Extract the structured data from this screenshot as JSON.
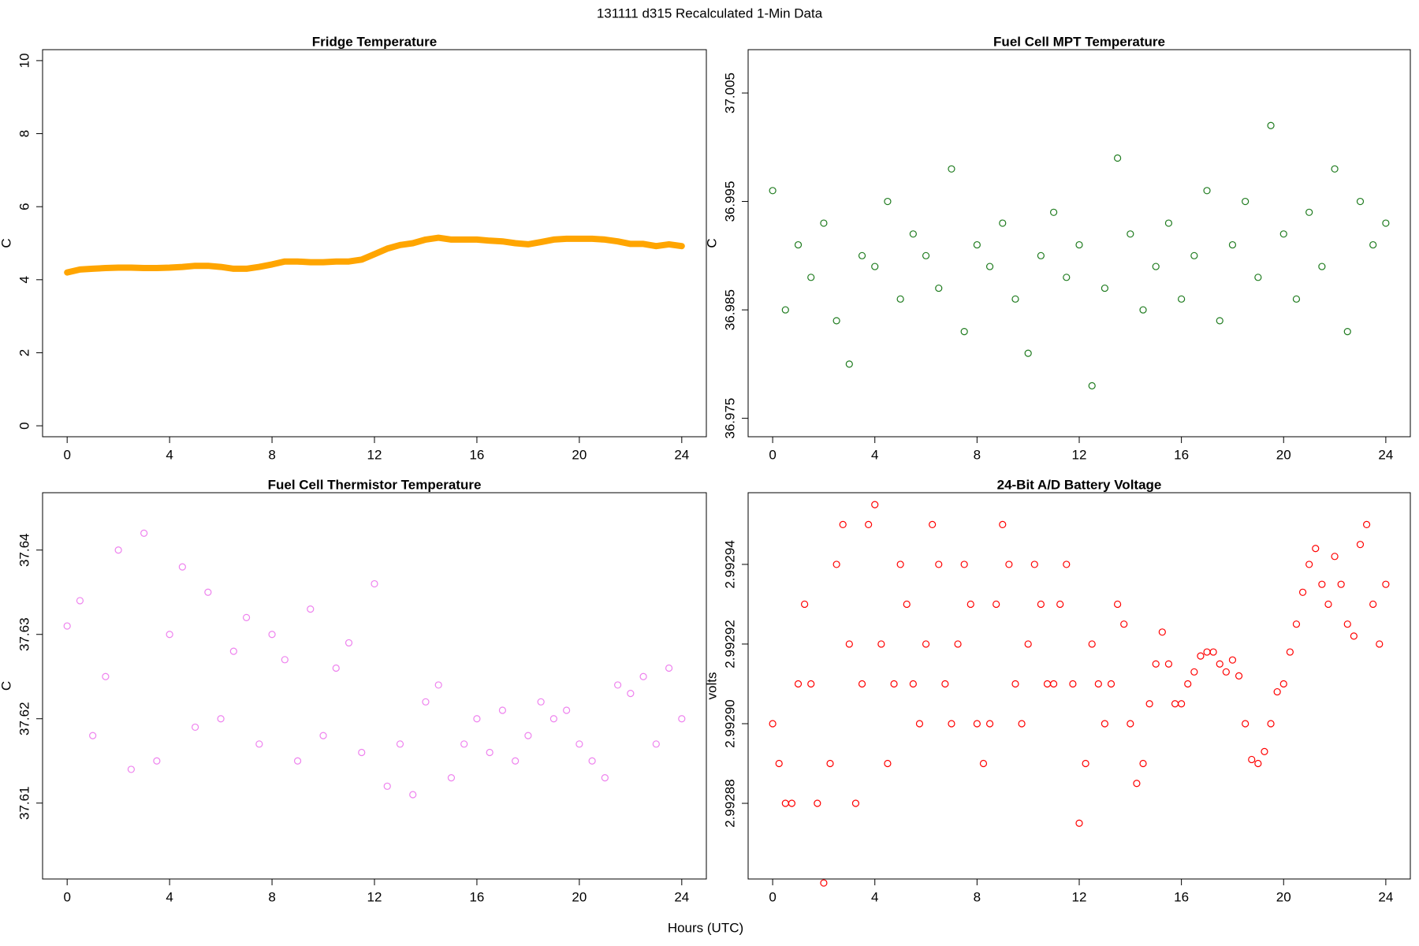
{
  "title": "131111   d315   Recalculated 1-Min Data",
  "xlabel": "Hours (UTC)",
  "chart_data": [
    {
      "type": "line",
      "title": "Fridge Temperature",
      "ylabel": "C",
      "color": "#ffa500",
      "x": [
        0,
        0.5,
        1,
        1.5,
        2,
        2.5,
        3,
        3.5,
        4,
        4.5,
        5,
        5.5,
        6,
        6.5,
        7,
        7.5,
        8,
        8.5,
        9,
        9.5,
        10,
        10.5,
        11,
        11.5,
        12,
        12.5,
        13,
        13.5,
        14,
        14.5,
        15,
        15.5,
        16,
        16.5,
        17,
        17.5,
        18,
        18.5,
        19,
        19.5,
        20,
        20.5,
        21,
        21.5,
        22,
        22.5,
        23,
        23.5,
        24
      ],
      "values": [
        4.2,
        4.28,
        4.3,
        4.32,
        4.33,
        4.33,
        4.32,
        4.32,
        4.33,
        4.35,
        4.38,
        4.38,
        4.35,
        4.3,
        4.3,
        4.35,
        4.42,
        4.5,
        4.5,
        4.48,
        4.48,
        4.5,
        4.5,
        4.55,
        4.7,
        4.85,
        4.95,
        5.0,
        5.1,
        5.15,
        5.1,
        5.1,
        5.1,
        5.07,
        5.05,
        5.0,
        4.97,
        5.03,
        5.1,
        5.12,
        5.12,
        5.12,
        5.1,
        5.05,
        4.98,
        4.98,
        4.92,
        4.97,
        4.92
      ],
      "xlim": [
        -0.96,
        24.96
      ],
      "xticks": [
        0,
        4,
        8,
        12,
        16,
        20,
        24
      ],
      "ylim": [
        -0.3,
        10.3
      ],
      "yticks": [
        0,
        2,
        4,
        6,
        8,
        10
      ]
    },
    {
      "type": "scatter",
      "title": "Fuel Cell MPT Temperature",
      "ylabel": "C",
      "color": "#1e7b1e",
      "x": [
        0,
        0.5,
        1,
        1.5,
        2,
        2.5,
        3,
        3.5,
        4,
        4.5,
        5,
        5.5,
        6,
        6.5,
        7,
        7.5,
        8,
        8.5,
        9,
        9.5,
        10,
        10.5,
        11,
        11.5,
        12,
        12.5,
        13,
        13.5,
        14,
        14.5,
        15,
        15.5,
        16,
        16.5,
        17,
        17.5,
        18,
        18.5,
        19,
        19.5,
        20,
        20.5,
        21,
        21.5,
        22,
        22.5,
        23,
        23.5,
        24
      ],
      "values": [
        36.996,
        36.985,
        36.991,
        36.988,
        36.993,
        36.984,
        36.98,
        36.99,
        36.989,
        36.995,
        36.986,
        36.992,
        36.99,
        36.987,
        36.998,
        36.983,
        36.991,
        36.989,
        36.993,
        36.986,
        36.981,
        36.99,
        36.994,
        36.988,
        36.991,
        36.978,
        36.987,
        36.999,
        36.992,
        36.985,
        36.989,
        36.993,
        36.986,
        36.99,
        36.996,
        36.984,
        36.991,
        36.995,
        36.988,
        37.002,
        36.992,
        36.986,
        36.994,
        36.989,
        36.998,
        36.983,
        36.995,
        36.991,
        36.993
      ],
      "xlim": [
        -0.96,
        24.96
      ],
      "xticks": [
        0,
        4,
        8,
        12,
        16,
        20,
        24
      ],
      "ylim": [
        36.9733,
        37.009
      ],
      "yticks": [
        36.975,
        36.985,
        36.995,
        37.005
      ]
    },
    {
      "type": "scatter",
      "title": "Fuel Cell Thermistor Temperature",
      "ylabel": "C",
      "color": "#ee82ee",
      "x": [
        0,
        0.5,
        1,
        1.5,
        2,
        2.5,
        3,
        3.5,
        4,
        4.5,
        5,
        5.5,
        6,
        6.5,
        7,
        7.5,
        8,
        8.5,
        9,
        9.5,
        10,
        10.5,
        11,
        11.5,
        12,
        12.5,
        13,
        13.5,
        14,
        14.5,
        15,
        15.5,
        16,
        16.5,
        17,
        17.5,
        18,
        18.5,
        19,
        19.5,
        20,
        20.5,
        21,
        21.5,
        22,
        22.5,
        23,
        23.5,
        24
      ],
      "values": [
        37.631,
        37.634,
        37.618,
        37.625,
        37.64,
        37.614,
        37.642,
        37.615,
        37.63,
        37.638,
        37.619,
        37.635,
        37.62,
        37.628,
        37.632,
        37.617,
        37.63,
        37.627,
        37.615,
        37.633,
        37.618,
        37.626,
        37.629,
        37.616,
        37.636,
        37.612,
        37.617,
        37.611,
        37.622,
        37.624,
        37.613,
        37.617,
        37.62,
        37.616,
        37.621,
        37.615,
        37.618,
        37.622,
        37.62,
        37.621,
        37.617,
        37.615,
        37.613,
        37.624,
        37.623,
        37.625,
        37.617,
        37.626,
        37.62
      ],
      "xlim": [
        -0.96,
        24.96
      ],
      "xticks": [
        0,
        4,
        8,
        12,
        16,
        20,
        24
      ],
      "ylim": [
        37.601,
        37.6468
      ],
      "yticks": [
        37.61,
        37.62,
        37.63,
        37.64
      ]
    },
    {
      "type": "scatter",
      "title": "24-Bit A/D Battery Voltage",
      "ylabel": "volts",
      "color": "#ff0000",
      "x": [
        0,
        0.25,
        0.5,
        0.75,
        1,
        1.25,
        1.5,
        1.75,
        2,
        2.25,
        2.5,
        2.75,
        3,
        3.25,
        3.5,
        3.75,
        4,
        4.25,
        4.5,
        4.75,
        5,
        5.25,
        5.5,
        5.75,
        6,
        6.25,
        6.5,
        6.75,
        7,
        7.25,
        7.5,
        7.75,
        8,
        8.25,
        8.5,
        8.75,
        9,
        9.25,
        9.5,
        9.75,
        10,
        10.25,
        10.5,
        10.75,
        11,
        11.25,
        11.5,
        11.75,
        12,
        12.25,
        12.5,
        12.75,
        13,
        13.25,
        13.5,
        13.75,
        14,
        14.25,
        14.5,
        14.75,
        15,
        15.25,
        15.5,
        15.75,
        16,
        16.25,
        16.5,
        16.75,
        17,
        17.25,
        17.5,
        17.75,
        18,
        18.25,
        18.5,
        18.75,
        19,
        19.25,
        19.5,
        19.75,
        20,
        20.25,
        20.5,
        20.75,
        21,
        21.25,
        21.5,
        21.75,
        22,
        22.25,
        22.5,
        22.75,
        23,
        23.25,
        23.5,
        23.75,
        24
      ],
      "values": [
        2.9929,
        2.99289,
        2.99288,
        2.99288,
        2.99291,
        2.99293,
        2.99291,
        2.99288,
        2.99286,
        2.99289,
        2.99294,
        2.99295,
        2.99292,
        2.99288,
        2.99291,
        2.99295,
        2.992955,
        2.99292,
        2.99289,
        2.99291,
        2.99294,
        2.99293,
        2.99291,
        2.9929,
        2.99292,
        2.99295,
        2.99294,
        2.99291,
        2.9929,
        2.99292,
        2.99294,
        2.99293,
        2.9929,
        2.99289,
        2.9929,
        2.99293,
        2.99295,
        2.99294,
        2.99291,
        2.9929,
        2.99292,
        2.99294,
        2.99293,
        2.99291,
        2.99291,
        2.99293,
        2.99294,
        2.99291,
        2.992875,
        2.99289,
        2.99292,
        2.99291,
        2.9929,
        2.99291,
        2.99293,
        2.992925,
        2.9929,
        2.992885,
        2.99289,
        2.992905,
        2.992915,
        2.992923,
        2.992915,
        2.992905,
        2.992905,
        2.99291,
        2.992913,
        2.992917,
        2.992918,
        2.992918,
        2.992915,
        2.992913,
        2.992916,
        2.992912,
        2.9929,
        2.992891,
        2.99289,
        2.992893,
        2.9929,
        2.992908,
        2.99291,
        2.992918,
        2.992925,
        2.992933,
        2.99294,
        2.992944,
        2.992935,
        2.99293,
        2.992942,
        2.992935,
        2.992925,
        2.992922,
        2.992945,
        2.99295,
        2.99293,
        2.99292,
        2.992935
      ],
      "xlim": [
        -0.96,
        24.96
      ],
      "xticks": [
        0,
        4,
        8,
        12,
        16,
        20,
        24
      ],
      "ylim": [
        2.992861,
        2.992958
      ],
      "yticks": [
        2.99288,
        {
          "value": 2.9929,
          "label": "2.99290"
        },
        2.99292,
        2.99294
      ]
    }
  ]
}
